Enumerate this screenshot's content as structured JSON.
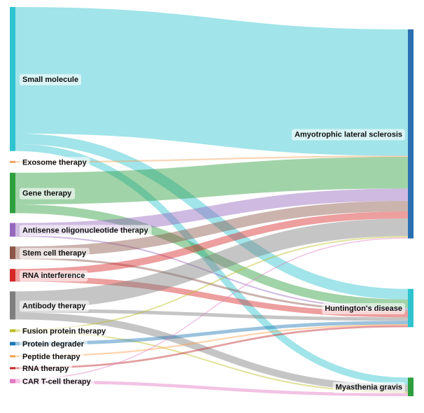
{
  "chart_data": {
    "type": "sankey",
    "title": "",
    "sources": [
      {
        "name": "Small molecule",
        "color": "#2ec4cf"
      },
      {
        "name": "Exosome therapy",
        "color": "#f0a35e"
      },
      {
        "name": "Gene therapy",
        "color": "#2e9e3e"
      },
      {
        "name": "Antisense oligonucleotide therapy",
        "color": "#9467bd"
      },
      {
        "name": "Stem cell therapy",
        "color": "#8c564b"
      },
      {
        "name": "RNA interference",
        "color": "#d62728"
      },
      {
        "name": "Antibody therapy",
        "color": "#7f7f7f"
      },
      {
        "name": "Fusion protein therapy",
        "color": "#bcbd22"
      },
      {
        "name": "Protein degrader",
        "color": "#1f77b4"
      },
      {
        "name": "Peptide therapy",
        "color": "#ff9f4a"
      },
      {
        "name": "RNA therapy",
        "color": "#c0282d"
      },
      {
        "name": "CAR T-cell therapy",
        "color": "#e377c2"
      }
    ],
    "targets": [
      {
        "name": "Amyotrophic lateral sclerosis",
        "color": "#2b6fb0"
      },
      {
        "name": "Huntington's disease",
        "color": "#2ec4cf"
      },
      {
        "name": "Myasthenia gravis",
        "color": "#2e9e3e"
      }
    ],
    "links": [
      {
        "source": "Small molecule",
        "target": "Amyotrophic lateral sclerosis",
        "value": 36
      },
      {
        "source": "Small molecule",
        "target": "Huntington's disease",
        "value": 3
      },
      {
        "source": "Small molecule",
        "target": "Myasthenia gravis",
        "value": 2
      },
      {
        "source": "Exosome therapy",
        "target": "Amyotrophic lateral sclerosis",
        "value": 0.3
      },
      {
        "source": "Gene therapy",
        "target": "Amyotrophic lateral sclerosis",
        "value": 9
      },
      {
        "source": "Gene therapy",
        "target": "Huntington's disease",
        "value": 2.5
      },
      {
        "source": "Antisense oligonucleotide therapy",
        "target": "Amyotrophic lateral sclerosis",
        "value": 3.5
      },
      {
        "source": "Antisense oligonucleotide therapy",
        "target": "Huntington's disease",
        "value": 0.4
      },
      {
        "source": "Stem cell therapy",
        "target": "Amyotrophic lateral sclerosis",
        "value": 3
      },
      {
        "source": "Stem cell therapy",
        "target": "Huntington's disease",
        "value": 0.6
      },
      {
        "source": "RNA interference",
        "target": "Amyotrophic lateral sclerosis",
        "value": 2
      },
      {
        "source": "RNA interference",
        "target": "Huntington's disease",
        "value": 1.6
      },
      {
        "source": "Antibody therapy",
        "target": "Amyotrophic lateral sclerosis",
        "value": 5
      },
      {
        "source": "Antibody therapy",
        "target": "Huntington's disease",
        "value": 1
      },
      {
        "source": "Antibody therapy",
        "target": "Myasthenia gravis",
        "value": 2
      },
      {
        "source": "Fusion protein therapy",
        "target": "Amyotrophic lateral sclerosis",
        "value": 0.4
      },
      {
        "source": "Fusion protein therapy",
        "target": "Myasthenia gravis",
        "value": 0.4
      },
      {
        "source": "Protein degrader",
        "target": "Huntington's disease",
        "value": 1
      },
      {
        "source": "Peptide therapy",
        "target": "Huntington's disease",
        "value": 0.3
      },
      {
        "source": "RNA therapy",
        "target": "Huntington's disease",
        "value": 0.5
      },
      {
        "source": "CAR T-cell therapy",
        "target": "Amyotrophic lateral sclerosis",
        "value": 0.3
      },
      {
        "source": "CAR T-cell therapy",
        "target": "Myasthenia gravis",
        "value": 0.9
      }
    ]
  }
}
